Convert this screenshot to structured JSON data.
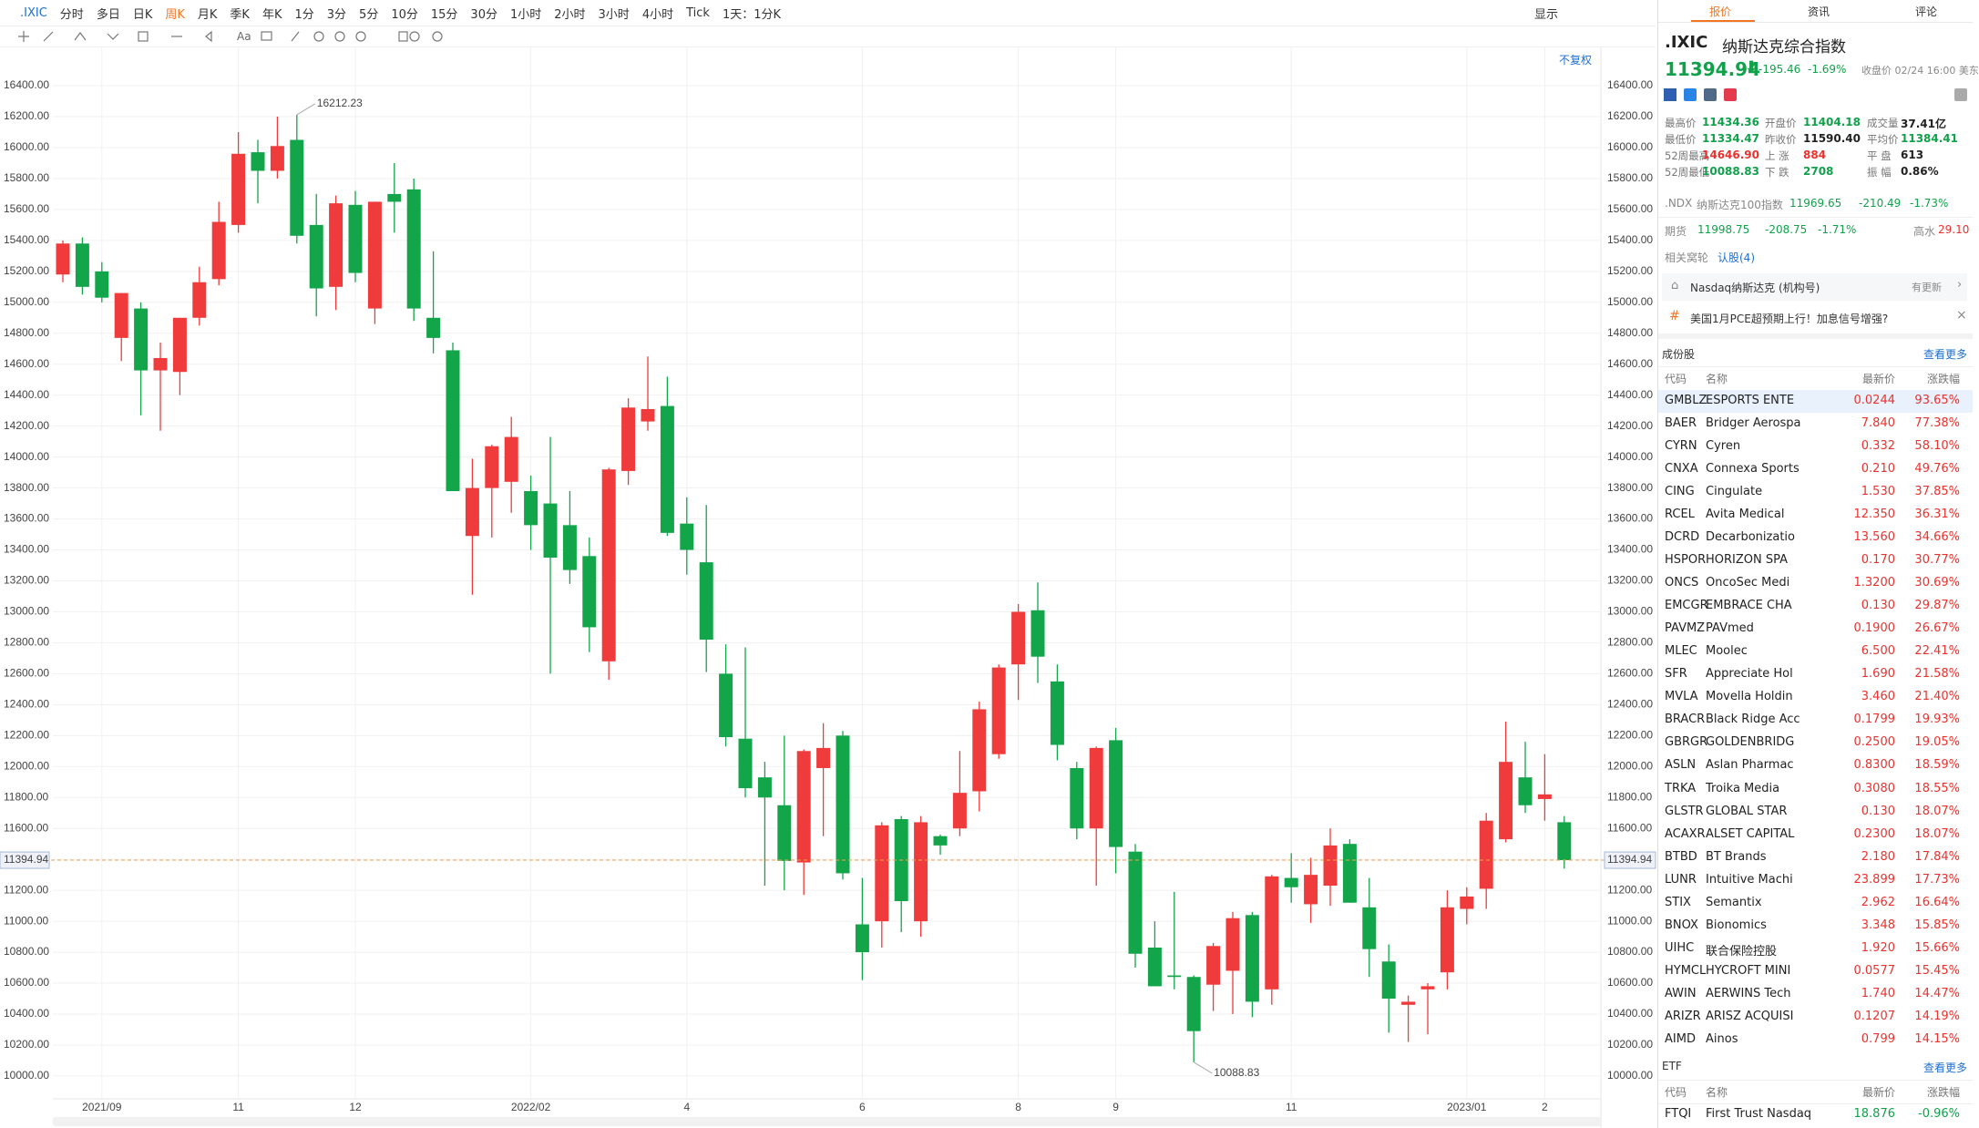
{
  "toolbar": {
    "symbol": ".IXIC",
    "periods": [
      "分时",
      "多日",
      "日K",
      "周K",
      "月K",
      "季K",
      "年K",
      "1分",
      "3分",
      "5分",
      "10分",
      "15分",
      "30分",
      "1小时",
      "2小时",
      "3小时",
      "4小时",
      "Tick"
    ],
    "interval": "1天：1分K",
    "display": "显示",
    "text_tool": "Aa",
    "adjust": "不复权"
  },
  "chart_data": {
    "type": "candlestick",
    "categories": [
      null,
      null,
      "2021/09",
      null,
      null,
      null,
      null,
      null,
      null,
      "11",
      null,
      null,
      null,
      null,
      null,
      "12",
      null,
      null,
      null,
      null,
      null,
      null,
      null,
      null,
      "2022/02",
      null,
      null,
      null,
      null,
      null,
      null,
      null,
      "4",
      null,
      null,
      null,
      null,
      null,
      null,
      null,
      null,
      "6",
      null,
      null,
      null,
      null,
      null,
      null,
      null,
      "8",
      null,
      null,
      null,
      null,
      "9",
      null,
      null,
      null,
      null,
      null,
      null,
      null,
      null,
      "11",
      null,
      null,
      null,
      null,
      null,
      null,
      null,
      null,
      "2023/01",
      null,
      null,
      null,
      "2",
      null
    ],
    "open": [
      15180,
      15380,
      15200,
      14770,
      14960,
      14560,
      14550,
      14900,
      15150,
      15500,
      15970,
      15850,
      16050,
      15500,
      15100,
      15630,
      14960,
      15700,
      15730,
      14900,
      14690,
      13490,
      13800,
      13840,
      13780,
      13700,
      13560,
      13360,
      12680,
      13910,
      14230,
      14330,
      13570,
      13320,
      12600,
      12180,
      11930,
      11750,
      11380,
      11990,
      12200,
      10980,
      11000,
      11660,
      11000,
      11550,
      11600,
      11840,
      12080,
      12660,
      13010,
      12550,
      11990,
      11600,
      12170,
      11450,
      10830,
      10650,
      10640,
      10590,
      10680,
      11040,
      10560,
      11280,
      11110,
      11230,
      11500,
      11090,
      10740,
      10460,
      10560,
      10670,
      11080,
      11210,
      11530,
      11930,
      11790,
      11640
    ],
    "high": [
      15400,
      15420,
      15260,
      15060,
      15000,
      14740,
      14900,
      15230,
      15650,
      16100,
      16050,
      16200,
      16212.23,
      15700,
      15690,
      15720,
      15650,
      15900,
      15800,
      15330,
      14740,
      13990,
      14080,
      14260,
      13880,
      14130,
      13780,
      13480,
      13930,
      14380,
      14650,
      14520,
      13740,
      13690,
      12790,
      12770,
      12030,
      12200,
      12110,
      12280,
      12230,
      11280,
      11640,
      11680,
      11680,
      11560,
      12100,
      12420,
      12660,
      13050,
      13190,
      12660,
      12030,
      12130,
      12250,
      11500,
      11000,
      11190,
      10650,
      10860,
      11060,
      11060,
      11300,
      11440,
      11410,
      11600,
      11530,
      11280,
      10850,
      10520,
      10600,
      11200,
      11220,
      11700,
      12290,
      12160,
      12080,
      11680
    ],
    "low": [
      15130,
      15050,
      15000,
      14620,
      14270,
      14170,
      14400,
      14850,
      15110,
      15450,
      15640,
      15800,
      15380,
      14910,
      14950,
      15130,
      14860,
      15450,
      14880,
      14670,
      13780,
      13110,
      13480,
      13640,
      13400,
      12600,
      13180,
      12740,
      12560,
      13820,
      14170,
      13490,
      13240,
      12610,
      12130,
      11800,
      11230,
      11200,
      11170,
      11550,
      11270,
      10620,
      10830,
      10930,
      10900,
      11430,
      11550,
      11710,
      12050,
      12430,
      12540,
      12040,
      11530,
      11230,
      11310,
      10700,
      10580,
      10560,
      10088.83,
      10420,
      10400,
      10380,
      10460,
      11120,
      10990,
      11100,
      11120,
      10640,
      10280,
      10220,
      10270,
      10560,
      10980,
      11080,
      11510,
      11700,
      11650,
      11340
    ],
    "close": [
      15380,
      15100,
      15030,
      15060,
      14560,
      14640,
      14900,
      15130,
      15520,
      15960,
      15850,
      16010,
      15430,
      15090,
      15640,
      15190,
      15650,
      15650,
      14960,
      14770,
      13780,
      13800,
      14070,
      14130,
      13560,
      13350,
      13270,
      12900,
      13920,
      14320,
      14310,
      13510,
      13400,
      12820,
      12190,
      11860,
      11800,
      11390,
      12100,
      12120,
      11310,
      10800,
      11620,
      11130,
      11640,
      11490,
      11830,
      12370,
      12640,
      13000,
      12710,
      12140,
      11600,
      12120,
      11480,
      10790,
      10580,
      10640,
      10290,
      10840,
      11020,
      10480,
      11290,
      11220,
      11300,
      11490,
      11120,
      10820,
      10500,
      10480,
      10580,
      11090,
      11160,
      11650,
      12030,
      11750,
      11820,
      11394.94
    ],
    "up_color": "#ef3b3b",
    "down_color": "#13a54a",
    "grid": true,
    "ylim": [
      9870,
      16630
    ],
    "yticks": [
      {
        "value": 10000,
        "label": "10000.00"
      },
      {
        "value": 10200,
        "label": "10200.00"
      },
      {
        "value": 10400,
        "label": "10400.00"
      },
      {
        "value": 10600,
        "label": "10600.00"
      },
      {
        "value": 10800,
        "label": "10800.00"
      },
      {
        "value": 11000,
        "label": "11000.00"
      },
      {
        "value": 11200,
        "label": "11200.00"
      },
      {
        "value": 11400,
        "label": "11400.00"
      },
      {
        "value": 11600,
        "label": "11600.00"
      },
      {
        "value": 11800,
        "label": "11800.00"
      },
      {
        "value": 12000,
        "label": "12000.00"
      },
      {
        "value": 12200,
        "label": "12200.00"
      },
      {
        "value": 12400,
        "label": "12400.00"
      },
      {
        "value": 12600,
        "label": "12600.00"
      },
      {
        "value": 12800,
        "label": "12800.00"
      },
      {
        "value": 13000,
        "label": "13000.00"
      },
      {
        "value": 13200,
        "label": "13200.00"
      },
      {
        "value": 13400,
        "label": "13400.00"
      },
      {
        "value": 13600,
        "label": "13600.00"
      },
      {
        "value": 13800,
        "label": "13800.00"
      },
      {
        "value": 14000,
        "label": "14000.00"
      },
      {
        "value": 14200,
        "label": "14200.00"
      },
      {
        "value": 14400,
        "label": "14400.00"
      },
      {
        "value": 14600,
        "label": "14600.00"
      },
      {
        "value": 14800,
        "label": "14800.00"
      },
      {
        "value": 15000,
        "label": "15000.00"
      },
      {
        "value": 15200,
        "label": "15200.00"
      },
      {
        "value": 15400,
        "label": "15400.00"
      },
      {
        "value": 15600,
        "label": "15600.00"
      },
      {
        "value": 15800,
        "label": "15800.00"
      },
      {
        "value": 16000,
        "label": "16000.00"
      },
      {
        "value": 16200,
        "label": "16200.00"
      },
      {
        "value": 16400,
        "label": "16400.00"
      }
    ]
  },
  "panel": {
    "tabs": [
      "报价",
      "资讯",
      "评论"
    ],
    "symbol": ".IXIC",
    "name": "纳斯达克综合指数",
    "price": "11394.94",
    "change": "-195.46",
    "change_pct": "-1.69%",
    "time": "收盘价 02/24 16:00 美东",
    "stats": [
      [
        [
          "最高价",
          "11434.36"
        ],
        [
          "开盘价",
          "11404.18"
        ],
        [
          "成交量",
          "37.41亿"
        ]
      ],
      [
        [
          "最低价",
          "11334.47"
        ],
        [
          "昨收价",
          "11590.40"
        ],
        [
          "平均价",
          "11384.41"
        ]
      ],
      [
        [
          "52周最高",
          "14646.90"
        ],
        [
          "上 涨",
          "884"
        ],
        [
          "平 盘",
          "613"
        ]
      ],
      [
        [
          "52周最低",
          "10088.83"
        ],
        [
          "下 跌",
          "2708"
        ],
        [
          "振 幅",
          "0.86%"
        ]
      ]
    ],
    "ndx": {
      "symbol": ".NDX",
      "name": "纳斯达克100指数",
      "price": "11969.65",
      "change": "-210.49",
      "change_pct": "-1.73%"
    },
    "futures": {
      "label": "期货",
      "price": "11998.75",
      "change": "-208.75",
      "change_pct": "-1.71%",
      "premium_label": "高水",
      "premium": "29.10"
    },
    "warrants": {
      "label": "相关窝轮",
      "link": "认股(4)"
    },
    "account": {
      "name": "Nasdaq纳斯达克 (机构号)",
      "status": "有更新"
    },
    "news": "美国1月PCE超预期上行！加息信号增强?",
    "constituents": {
      "title": "成份股",
      "more": "查看更多",
      "columns": [
        "代码",
        "名称",
        "最新价",
        "涨跌幅"
      ],
      "rows": [
        [
          "GMBLZ",
          "ESPORTS ENTE",
          "0.0244",
          "93.65%"
        ],
        [
          "BAER",
          "Bridger Aerospa",
          "7.840",
          "77.38%"
        ],
        [
          "CYRN",
          "Cyren",
          "0.332",
          "58.10%"
        ],
        [
          "CNXA",
          "Connexa Sports",
          "0.210",
          "49.76%"
        ],
        [
          "CING",
          "Cingulate",
          "1.530",
          "37.85%"
        ],
        [
          "RCEL",
          "Avita Medical",
          "12.350",
          "36.31%"
        ],
        [
          "DCRD",
          "Decarbonizatio",
          "13.560",
          "34.66%"
        ],
        [
          "HSPOR",
          "HORIZON SPA",
          "0.170",
          "30.77%"
        ],
        [
          "ONCS",
          "OncoSec Medi",
          "1.3200",
          "30.69%"
        ],
        [
          "EMCGR",
          "EMBRACE CHA",
          "0.130",
          "29.87%"
        ],
        [
          "PAVMZ",
          "PAVmed",
          "0.1900",
          "26.67%"
        ],
        [
          "MLEC",
          "Moolec",
          "6.500",
          "22.41%"
        ],
        [
          "SFR",
          "Appreciate Hol",
          "1.690",
          "21.58%"
        ],
        [
          "MVLA",
          "Movella Holdin",
          "3.460",
          "21.40%"
        ],
        [
          "BRACR",
          "Black Ridge Acc",
          "0.1799",
          "19.93%"
        ],
        [
          "GBRGR",
          "GOLDENBRIDG",
          "0.2500",
          "19.05%"
        ],
        [
          "ASLN",
          "Aslan Pharmac",
          "0.8300",
          "18.59%"
        ],
        [
          "TRKA",
          "Troika Media",
          "0.3080",
          "18.55%"
        ],
        [
          "GLSTR",
          "GLOBAL STAR",
          "0.130",
          "18.07%"
        ],
        [
          "ACAXR",
          "ALSET CAPITAL",
          "0.2300",
          "18.07%"
        ],
        [
          "BTBD",
          "BT Brands",
          "2.180",
          "17.84%"
        ],
        [
          "LUNR",
          "Intuitive Machi",
          "23.899",
          "17.73%"
        ],
        [
          "STIX",
          "Semantix",
          "2.962",
          "16.64%"
        ],
        [
          "BNOX",
          "Bionomics",
          "3.348",
          "15.85%"
        ],
        [
          "UIHC",
          "联合保险控股",
          "1.920",
          "15.66%"
        ],
        [
          "HYMCL",
          "HYCROFT MINI",
          "0.0577",
          "15.45%"
        ],
        [
          "AWIN",
          "AERWINS Tech",
          "1.740",
          "14.47%"
        ],
        [
          "ARIZR",
          "ARISZ ACQUISI",
          "0.1207",
          "14.19%"
        ],
        [
          "AIMD",
          "Ainos",
          "0.799",
          "14.15%"
        ]
      ]
    },
    "etf": {
      "title": "ETF",
      "more": "查看更多",
      "columns": [
        "代码",
        "名称",
        "最新价",
        "涨跌幅"
      ],
      "rows": [
        [
          "FTQI",
          "First Trust Nasdaq",
          "18.876",
          "-0.96%"
        ]
      ]
    }
  }
}
